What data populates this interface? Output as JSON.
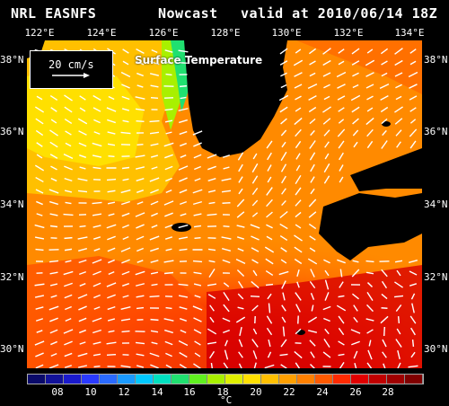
{
  "header": {
    "source": "NRL EASNFS",
    "product": "Nowcast",
    "valid": "valid at 2010/06/14 18Z"
  },
  "map": {
    "title": "Surface Temperature",
    "lon_labels": [
      "122°E",
      "124°E",
      "126°E",
      "128°E",
      "130°E",
      "132°E",
      "134°E"
    ],
    "lat_labels_left": [
      "38°N",
      "36°N",
      "34°N",
      "32°N",
      "30°N"
    ],
    "lat_labels_right": [
      "38°N",
      "36°N",
      "34°N",
      "32°N",
      "30°N"
    ],
    "scale": {
      "label": "20 cm/s"
    },
    "land_color": "#000000"
  },
  "colorbar": {
    "ticks": [
      "08",
      "10",
      "12",
      "14",
      "16",
      "18",
      "20",
      "22",
      "24",
      "26",
      "28"
    ],
    "unit": "°C",
    "colors": [
      "#0a0a6a",
      "#12129a",
      "#1a1acc",
      "#2a3aff",
      "#2a6aff",
      "#1a9aff",
      "#00c8ff",
      "#00e0c0",
      "#20e070",
      "#60f020",
      "#a8f000",
      "#e0f000",
      "#ffe000",
      "#ffc000",
      "#ffa000",
      "#ff8000",
      "#ff5a00",
      "#ff2a00",
      "#e00000",
      "#c00000",
      "#a00000",
      "#800000"
    ]
  }
}
